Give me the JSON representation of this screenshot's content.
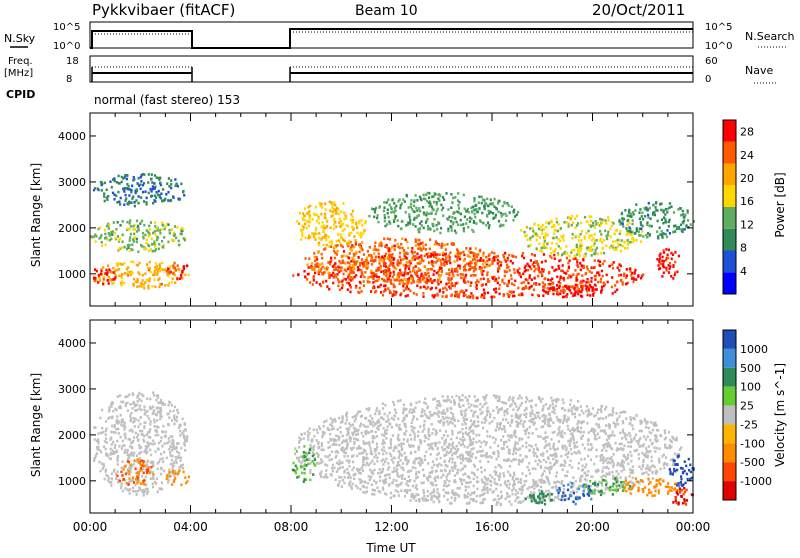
{
  "header": {
    "title": "Pykkvibaer (fitACF)",
    "beam": "Beam 10",
    "date": "20/Oct/2011"
  },
  "noise_panel": {
    "left_label": "N.Sky",
    "right_label": "N.Search",
    "left_ticks": [
      "10^5",
      "10^0"
    ],
    "right_ticks": [
      "10^5",
      "10^0"
    ]
  },
  "freq_panel": {
    "left_label_line1": "Freq.",
    "left_label_line2": "[MHz]",
    "right_label": "Nave",
    "left_ticks": [
      "18",
      "8"
    ],
    "right_ticks": [
      "60",
      "0"
    ]
  },
  "cpid": {
    "label": "CPID",
    "text": "normal (fast stereo) 153"
  },
  "colors": {
    "power_scale": [
      "#0000ff",
      "#1f4fd6",
      "#2e8b57",
      "#5fae5f",
      "#ffd700",
      "#ffa500",
      "#ff5a00",
      "#ff0000"
    ],
    "velocity_scale": [
      "#1e4db7",
      "#3f8fd8",
      "#2e8b57",
      "#66cc33",
      "#bfbfbf",
      "#ffb400",
      "#ff8c00",
      "#ff4500",
      "#e00000"
    ],
    "ground_scatter": "#c0c0c0"
  },
  "chart_data": [
    {
      "type": "heatmap",
      "name": "power",
      "xlabel": "",
      "ylabel": "Slant Range [km]",
      "xlim": [
        0,
        24
      ],
      "ylim": [
        300,
        4500
      ],
      "yticks": [
        1000,
        2000,
        3000,
        4000
      ],
      "colorbar_label": "Power [dB]",
      "colorbar_ticks": [
        4,
        8,
        12,
        16,
        20,
        24,
        28
      ],
      "colorbar_range": [
        0,
        30
      ],
      "data_gaps_ut": [
        [
          4.0,
          8.0
        ]
      ],
      "blobs": [
        {
          "t": [
            0.0,
            3.9
          ],
          "r": [
            700,
            1300
          ],
          "level": 20
        },
        {
          "t": [
            0.0,
            1.0
          ],
          "r": [
            800,
            1200
          ],
          "level": 28
        },
        {
          "t": [
            2.9,
            3.9
          ],
          "r": [
            900,
            1300
          ],
          "level": 26
        },
        {
          "t": [
            0.0,
            3.9
          ],
          "r": [
            1500,
            2200
          ],
          "level": 14
        },
        {
          "t": [
            0.0,
            3.9
          ],
          "r": [
            2500,
            3200
          ],
          "level": 8
        },
        {
          "t": [
            8.0,
            22.0
          ],
          "r": [
            500,
            1500
          ],
          "level": 26
        },
        {
          "t": [
            8.5,
            16.0
          ],
          "r": [
            800,
            1800
          ],
          "level": 24
        },
        {
          "t": [
            8.0,
            11.0
          ],
          "r": [
            1600,
            2600
          ],
          "level": 18
        },
        {
          "t": [
            11.0,
            17.0
          ],
          "r": [
            1900,
            2800
          ],
          "level": 12
        },
        {
          "t": [
            17.0,
            22.0
          ],
          "r": [
            1400,
            2300
          ],
          "level": 16
        },
        {
          "t": [
            18.0,
            21.0
          ],
          "r": [
            500,
            800
          ],
          "level": 28
        },
        {
          "t": [
            22.5,
            23.5
          ],
          "r": [
            900,
            1600
          ],
          "level": 28
        },
        {
          "t": [
            21.0,
            24.0
          ],
          "r": [
            1800,
            2600
          ],
          "level": 10
        }
      ]
    },
    {
      "type": "heatmap",
      "name": "velocity",
      "xlabel": "Time UT",
      "ylabel": "Slant Range [km]",
      "xlim": [
        0,
        24
      ],
      "ylim": [
        300,
        4500
      ],
      "xticks": [
        "00:00",
        "04:00",
        "08:00",
        "12:00",
        "16:00",
        "20:00",
        "00:00"
      ],
      "yticks": [
        1000,
        2000,
        3000,
        4000
      ],
      "colorbar_label": "Velocity [m s^-1]",
      "colorbar_ticks": [
        "1000",
        "500",
        "100",
        "25",
        "-25",
        "-100",
        "-500",
        "-1000"
      ],
      "data_gaps_ut": [
        [
          4.0,
          8.0
        ]
      ],
      "blobs": [
        {
          "t": [
            0.0,
            3.9
          ],
          "r": [
            700,
            3000
          ],
          "level": 0
        },
        {
          "t": [
            1.0,
            2.5
          ],
          "r": [
            900,
            1500
          ],
          "level": -300
        },
        {
          "t": [
            3.0,
            3.9
          ],
          "r": [
            900,
            1300
          ],
          "level": -150
        },
        {
          "t": [
            8.0,
            23.5
          ],
          "r": [
            500,
            2900
          ],
          "level": 0
        },
        {
          "t": [
            17.0,
            18.5
          ],
          "r": [
            500,
            800
          ],
          "level": 200
        },
        {
          "t": [
            18.5,
            20.0
          ],
          "r": [
            500,
            1000
          ],
          "level": 800
        },
        {
          "t": [
            19.5,
            21.5
          ],
          "r": [
            700,
            1100
          ],
          "level": 60
        },
        {
          "t": [
            21.0,
            23.5
          ],
          "r": [
            700,
            1100
          ],
          "level": -200
        },
        {
          "t": [
            23.0,
            24.0
          ],
          "r": [
            900,
            1600
          ],
          "level": 900
        },
        {
          "t": [
            23.0,
            24.0
          ],
          "r": [
            500,
            900
          ],
          "level": -800
        },
        {
          "t": [
            8.0,
            9.0
          ],
          "r": [
            1000,
            1800
          ],
          "level": 60
        }
      ]
    }
  ]
}
